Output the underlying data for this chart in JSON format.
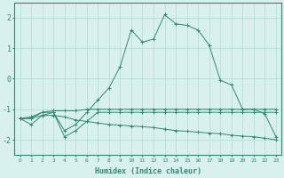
{
  "xlabel": "Humidex (Indice chaleur)",
  "x": [
    0,
    1,
    2,
    3,
    4,
    5,
    6,
    7,
    8,
    9,
    10,
    11,
    12,
    13,
    14,
    15,
    16,
    17,
    18,
    19,
    20,
    21,
    22,
    23
  ],
  "line1": [
    -1.3,
    -1.5,
    -1.2,
    -1.1,
    -1.7,
    -1.5,
    -1.1,
    -0.7,
    -0.3,
    0.4,
    1.6,
    1.2,
    1.3,
    2.1,
    1.8,
    1.75,
    1.6,
    1.1,
    -0.05,
    -0.2,
    -1.0,
    -1.0,
    -1.15,
    -1.9
  ],
  "line2": [
    -1.3,
    -1.25,
    -1.1,
    -1.05,
    -1.05,
    -1.05,
    -1.0,
    -1.0,
    -1.0,
    -1.0,
    -1.0,
    -1.0,
    -1.0,
    -1.0,
    -1.0,
    -1.0,
    -1.0,
    -1.0,
    -1.0,
    -1.0,
    -1.0,
    -1.0,
    -1.0,
    -1.0
  ],
  "line3": [
    -1.3,
    -1.3,
    -1.2,
    -1.2,
    -1.25,
    -1.35,
    -1.4,
    -1.45,
    -1.5,
    -1.52,
    -1.55,
    -1.57,
    -1.6,
    -1.65,
    -1.7,
    -1.72,
    -1.75,
    -1.78,
    -1.8,
    -1.85,
    -1.88,
    -1.9,
    -1.95,
    -2.0
  ],
  "line4": [
    -1.3,
    -1.3,
    -1.1,
    -1.1,
    -1.9,
    -1.7,
    -1.4,
    -1.1,
    -1.1,
    -1.1,
    -1.1,
    -1.1,
    -1.1,
    -1.1,
    -1.1,
    -1.1,
    -1.1,
    -1.1,
    -1.1,
    -1.1,
    -1.1,
    -1.1,
    -1.1,
    -1.1
  ],
  "color": "#2e8b72",
  "bg_color": "#d8f0ee",
  "grid_color": "#b0ddd8",
  "ylim": [
    -2.5,
    2.5
  ],
  "yticks": [
    -2,
    -1,
    0,
    1,
    2
  ],
  "xticks": [
    0,
    1,
    2,
    3,
    4,
    5,
    6,
    7,
    8,
    9,
    10,
    11,
    12,
    13,
    14,
    15,
    16,
    17,
    18,
    19,
    20,
    21,
    22,
    23
  ]
}
